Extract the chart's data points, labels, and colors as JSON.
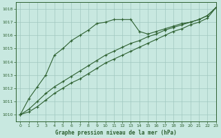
{
  "background_color": "#c8e8e0",
  "grid_color": "#a0c8c0",
  "line_color": "#2d6030",
  "title": "Graphe pression niveau de la mer (hPa)",
  "xlim": [
    -0.5,
    23
  ],
  "ylim": [
    1009.5,
    1018.5
  ],
  "yticks": [
    1010,
    1011,
    1012,
    1013,
    1014,
    1015,
    1016,
    1017,
    1018
  ],
  "xticks": [
    0,
    1,
    2,
    3,
    4,
    5,
    6,
    7,
    8,
    9,
    10,
    11,
    12,
    13,
    14,
    15,
    16,
    17,
    18,
    19,
    20,
    21,
    22,
    23
  ],
  "series1_x": [
    0,
    1,
    2,
    3,
    4,
    5,
    6,
    7,
    8,
    9,
    10,
    11,
    12,
    13,
    14,
    15,
    16,
    17,
    18,
    19,
    20,
    21,
    22,
    23
  ],
  "series1_y": [
    1010.0,
    1011.2,
    1012.1,
    1013.0,
    1014.5,
    1015.0,
    1015.6,
    1016.0,
    1016.4,
    1016.9,
    1017.0,
    1017.2,
    1017.2,
    1017.2,
    1016.3,
    1016.1,
    1016.3,
    1016.5,
    1016.7,
    1016.9,
    1017.0,
    1017.2,
    1017.5,
    1018.1
  ],
  "series2_x": [
    0,
    1,
    2,
    3,
    4,
    5,
    6,
    7,
    8,
    9,
    10,
    11,
    12,
    13,
    14,
    15,
    16,
    17,
    18,
    19,
    20,
    21,
    22,
    23
  ],
  "series2_y": [
    1010.0,
    1010.4,
    1011.0,
    1011.6,
    1012.1,
    1012.5,
    1012.9,
    1013.3,
    1013.7,
    1014.1,
    1014.5,
    1014.8,
    1015.1,
    1015.4,
    1015.6,
    1015.9,
    1016.1,
    1016.4,
    1016.6,
    1016.8,
    1017.0,
    1017.2,
    1017.5,
    1018.1
  ],
  "series3_x": [
    0,
    1,
    2,
    3,
    4,
    5,
    6,
    7,
    8,
    9,
    10,
    11,
    12,
    13,
    14,
    15,
    16,
    17,
    18,
    19,
    20,
    21,
    22,
    23
  ],
  "series3_y": [
    1010.0,
    1010.2,
    1010.6,
    1011.1,
    1011.6,
    1012.0,
    1012.4,
    1012.7,
    1013.1,
    1013.5,
    1013.9,
    1014.2,
    1014.5,
    1014.8,
    1015.1,
    1015.4,
    1015.7,
    1016.0,
    1016.3,
    1016.5,
    1016.8,
    1017.0,
    1017.3,
    1018.1
  ],
  "marker": "+",
  "marker_size": 3,
  "linewidth": 0.8
}
